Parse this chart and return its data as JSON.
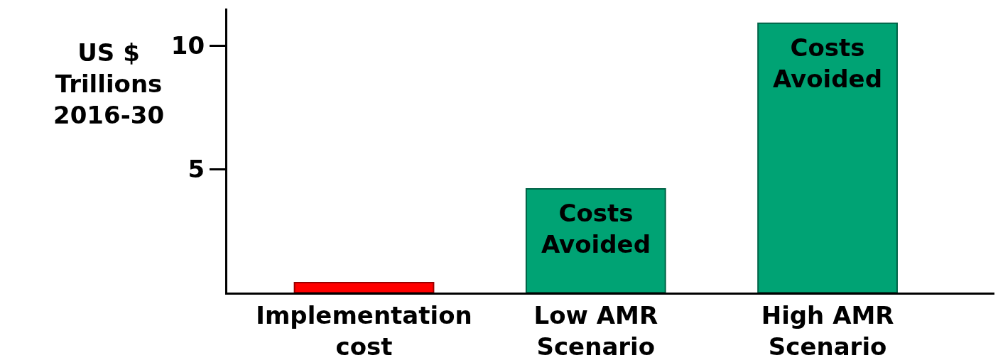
{
  "chart_data": {
    "type": "bar",
    "ylabel": "US $\nTrillions\n2016-30",
    "categories": [
      "Implementation\ncost",
      "Low AMR\nScenario",
      "High AMR\nScenario"
    ],
    "values": [
      0.4,
      4.2,
      10.9
    ],
    "colors": [
      "#ff0000",
      "#00a374",
      "#00a374"
    ],
    "ylim": [
      0,
      11.5
    ],
    "yticks": [
      5,
      10
    ],
    "annotations": [
      {
        "text": "Costs\nAvoided",
        "x": "Low AMR\nScenario",
        "y": 4.2
      },
      {
        "text": "Costs\nAvoided",
        "x": "High AMR\nScenario",
        "y": 10.9
      }
    ]
  }
}
